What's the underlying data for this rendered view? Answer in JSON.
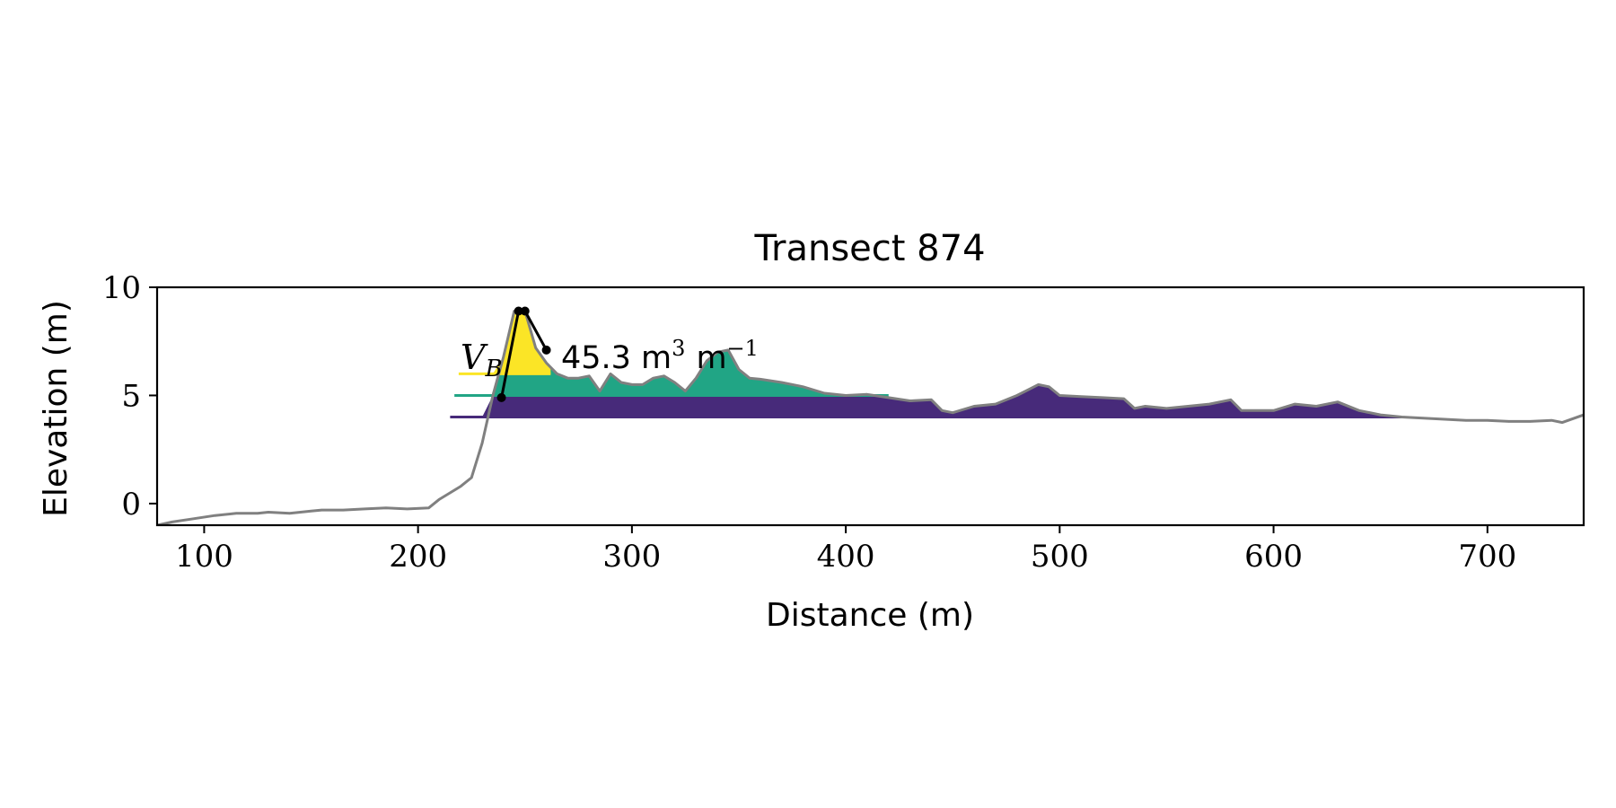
{
  "chart_data": {
    "type": "area",
    "title": "Transect 874",
    "xlabel": "Distance (m)",
    "ylabel": "Elevation (m)",
    "xlim": [
      78,
      745
    ],
    "ylim": [
      -1.0,
      10.0
    ],
    "xticks": [
      100,
      200,
      300,
      400,
      500,
      600,
      700
    ],
    "yticks": [
      0,
      5,
      10
    ],
    "grid": false,
    "colors": {
      "profile": "#808080",
      "frame": "#000000",
      "level_low": "#472a7a",
      "level_mid": "#21a585",
      "level_high": "#fbe526",
      "outline": "#000000"
    },
    "profile": {
      "x": [
        78,
        85,
        95,
        105,
        115,
        125,
        130,
        140,
        150,
        155,
        165,
        175,
        185,
        195,
        205,
        210,
        215,
        220,
        225,
        230,
        235,
        240,
        245,
        250,
        255,
        260,
        265,
        270,
        275,
        280,
        285,
        290,
        295,
        300,
        305,
        310,
        315,
        320,
        325,
        330,
        335,
        340,
        345,
        350,
        355,
        360,
        370,
        380,
        390,
        400,
        410,
        420,
        430,
        440,
        445,
        450,
        460,
        470,
        480,
        490,
        495,
        500,
        510,
        520,
        530,
        535,
        540,
        550,
        560,
        570,
        580,
        585,
        590,
        600,
        610,
        620,
        630,
        640,
        650,
        660,
        670,
        680,
        690,
        700,
        710,
        720,
        730,
        735,
        745
      ],
      "y": [
        -1.0,
        -0.85,
        -0.7,
        -0.55,
        -0.45,
        -0.45,
        -0.4,
        -0.45,
        -0.35,
        -0.3,
        -0.3,
        -0.25,
        -0.2,
        -0.25,
        -0.2,
        0.2,
        0.5,
        0.8,
        1.2,
        2.8,
        5.0,
        6.8,
        8.9,
        8.9,
        7.2,
        6.5,
        6.0,
        5.8,
        5.8,
        5.9,
        5.2,
        6.0,
        5.6,
        5.5,
        5.5,
        5.8,
        5.9,
        5.6,
        5.2,
        5.8,
        6.6,
        7.0,
        7.1,
        6.2,
        5.8,
        5.75,
        5.6,
        5.4,
        5.1,
        5.0,
        5.05,
        4.9,
        4.75,
        4.8,
        4.3,
        4.2,
        4.5,
        4.6,
        5.0,
        5.5,
        5.4,
        5.0,
        4.95,
        4.9,
        4.85,
        4.4,
        4.5,
        4.4,
        4.5,
        4.6,
        4.8,
        4.3,
        4.3,
        4.3,
        4.6,
        4.5,
        4.7,
        4.3,
        4.1,
        4.0,
        3.95,
        3.9,
        3.85,
        3.85,
        3.8,
        3.8,
        3.85,
        3.75,
        4.1
      ]
    },
    "fill_levels": [
      {
        "level": 4.0,
        "from": 215,
        "to": 660,
        "color": "#472a7a"
      },
      {
        "level": 5.0,
        "from": 217,
        "to": 420,
        "color": "#21a585"
      },
      {
        "level": 6.0,
        "from": 219,
        "to": 262,
        "color": "#fbe526"
      }
    ],
    "dune_outline": {
      "x": [
        239,
        247,
        250,
        260
      ],
      "y": [
        4.9,
        8.9,
        8.9,
        7.1
      ]
    },
    "annotation": {
      "label": "V_B",
      "subscript": "B",
      "value": "45.3 m",
      "exp1": "3",
      "unit2": "m",
      "exp2": "−1"
    }
  }
}
